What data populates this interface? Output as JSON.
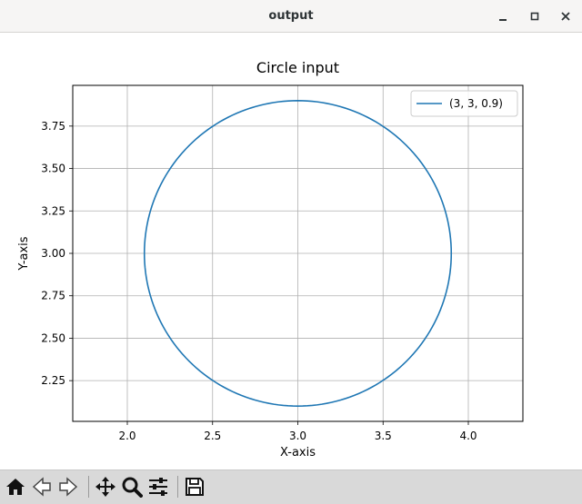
{
  "window": {
    "title": "output"
  },
  "chart_data": {
    "type": "line",
    "title": "Circle input",
    "xlabel": "X-axis",
    "ylabel": "Y-axis",
    "xlim": [
      1.68,
      4.32
    ],
    "ylim": [
      2.01,
      3.99
    ],
    "x_ticks": [
      "2.0",
      "2.5",
      "3.0",
      "3.5",
      "4.0"
    ],
    "y_ticks": [
      "2.25",
      "2.50",
      "2.75",
      "3.00",
      "3.25",
      "3.50",
      "3.75"
    ],
    "grid": true,
    "legend_position": "top-right",
    "series": [
      {
        "name": "(3, 3, 0.9)",
        "color": "#1f77b4",
        "shape": "circle",
        "center": [
          3,
          3
        ],
        "radius": 0.9
      }
    ]
  },
  "toolbar": {
    "buttons": [
      "home-icon",
      "back-icon",
      "forward-icon",
      "pan-icon",
      "zoom-icon",
      "configure-subplots-icon",
      "save-icon"
    ]
  }
}
